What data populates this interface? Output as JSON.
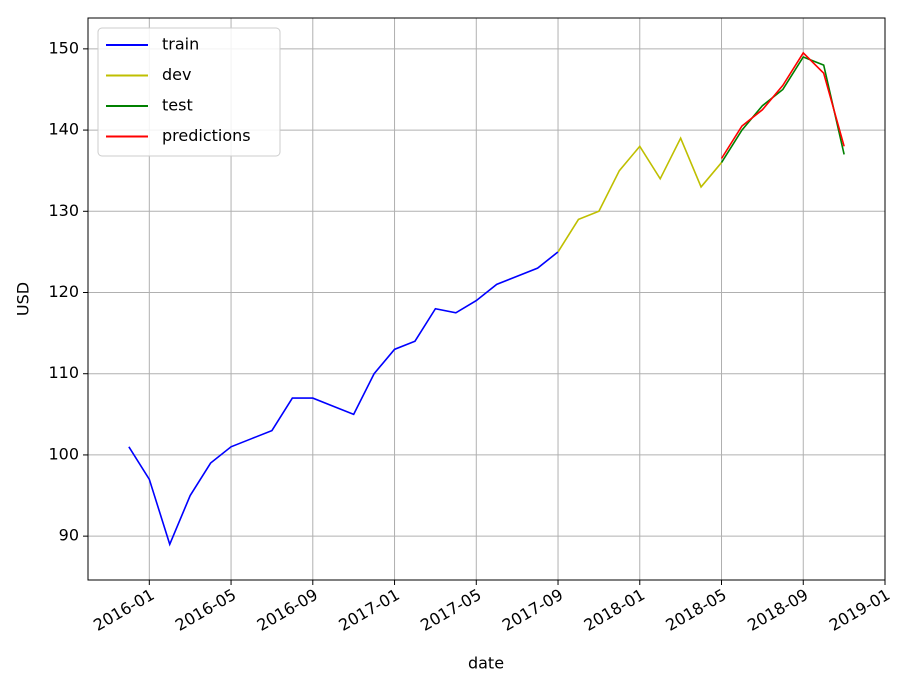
{
  "chart_data": {
    "type": "line",
    "x_label": "date",
    "y_label": "USD",
    "xlim": [
      "2015-10",
      "2019-01"
    ],
    "xticks": [
      "2016-01",
      "2016-05",
      "2016-09",
      "2017-01",
      "2017-05",
      "2017-09",
      "2018-01",
      "2018-05",
      "2018-09",
      "2019-01"
    ],
    "ylim": [
      84.6,
      153.8
    ],
    "yticks": [
      90,
      100,
      110,
      120,
      130,
      140,
      150
    ],
    "grid": true,
    "legend": "upper-left",
    "series": [
      {
        "name": "train",
        "color": "#0000ff",
        "x": [
          "2015-12",
          "2016-01",
          "2016-02",
          "2016-03",
          "2016-04",
          "2016-05",
          "2016-06",
          "2016-07",
          "2016-08",
          "2016-09",
          "2016-10",
          "2016-11",
          "2016-12",
          "2017-01",
          "2017-02",
          "2017-03",
          "2017-04",
          "2017-05",
          "2017-06",
          "2017-07",
          "2017-08",
          "2017-09"
        ],
        "values": [
          101,
          97,
          89,
          95,
          99,
          101,
          102,
          103,
          107,
          107,
          106,
          105,
          110,
          113,
          114,
          118,
          117.5,
          119,
          121,
          122,
          123,
          125
        ]
      },
      {
        "name": "dev",
        "color": "#bfbf00",
        "x": [
          "2017-09",
          "2017-10",
          "2017-11",
          "2017-12",
          "2018-01",
          "2018-02",
          "2018-03",
          "2018-04",
          "2018-05"
        ],
        "values": [
          125,
          129,
          130,
          135,
          138,
          134,
          139,
          133,
          136
        ]
      },
      {
        "name": "test",
        "color": "#008000",
        "x": [
          "2018-05",
          "2018-06",
          "2018-07",
          "2018-08",
          "2018-09",
          "2018-10",
          "2018-11"
        ],
        "values": [
          136,
          140,
          143,
          145,
          149,
          148,
          137
        ]
      },
      {
        "name": "predictions",
        "color": "#ff0000",
        "x": [
          "2018-05",
          "2018-06",
          "2018-07",
          "2018-08",
          "2018-09",
          "2018-10",
          "2018-11"
        ],
        "values": [
          136.5,
          140.5,
          142.5,
          145.5,
          149.5,
          147,
          138
        ]
      }
    ]
  }
}
